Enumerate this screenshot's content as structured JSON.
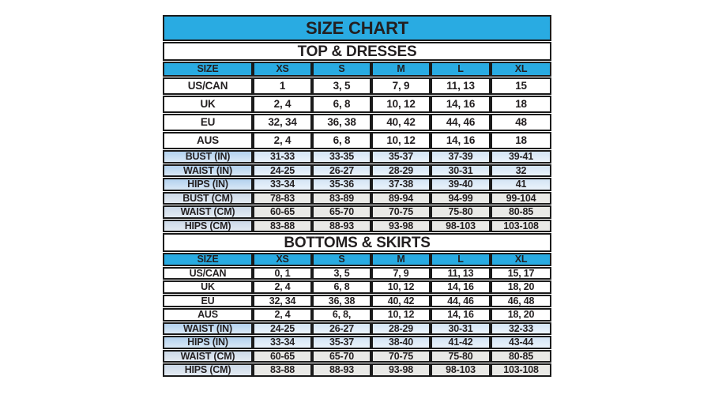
{
  "title": "SIZE CHART",
  "colors": {
    "accent-cyan": "#29ABE2",
    "border-dark": "#1b1b1b",
    "text-dark": "#231f20",
    "title-text": "#ffffff",
    "row-white": "#ffffff",
    "in-label-start": "#b3d1ee",
    "in-label-end": "#d9e8f6",
    "in-value-start": "#d3e4f4",
    "in-value-end": "#ebf3fb",
    "cm-label-start": "#ccd9e8",
    "cm-label-end": "#e3eaf2",
    "cm-value": "#e9e9e6"
  },
  "chart_data": [
    {
      "type": "table",
      "title": "TOP & DRESSES",
      "columns": [
        "SIZE",
        "XS",
        "S",
        "M",
        "L",
        "XL"
      ],
      "rows": [
        {
          "label": "US/CAN",
          "kind": "size",
          "values": [
            "1",
            "3, 5",
            "7, 9",
            "11, 13",
            "15"
          ]
        },
        {
          "label": "UK",
          "kind": "size",
          "values": [
            "2, 4",
            "6, 8",
            "10, 12",
            "14, 16",
            "18"
          ]
        },
        {
          "label": "EU",
          "kind": "size",
          "values": [
            "32, 34",
            "36, 38",
            "40, 42",
            "44, 46",
            "48"
          ]
        },
        {
          "label": "AUS",
          "kind": "size",
          "values": [
            "2, 4",
            "6, 8",
            "10, 12",
            "14, 16",
            "18"
          ]
        },
        {
          "label": "BUST (IN)",
          "kind": "in",
          "values": [
            "31-33",
            "33-35",
            "35-37",
            "37-39",
            "39-41"
          ]
        },
        {
          "label": "WAIST (IN)",
          "kind": "in",
          "values": [
            "24-25",
            "26-27",
            "28-29",
            "30-31",
            "32"
          ]
        },
        {
          "label": "HIPS (IN)",
          "kind": "in",
          "values": [
            "33-34",
            "35-36",
            "37-38",
            "39-40",
            "41"
          ]
        },
        {
          "label": "BUST (CM)",
          "kind": "cm",
          "values": [
            "78-83",
            "83-89",
            "89-94",
            "94-99",
            "99-104"
          ]
        },
        {
          "label": "WAIST (CM)",
          "kind": "cm",
          "values": [
            "60-65",
            "65-70",
            "70-75",
            "75-80",
            "80-85"
          ]
        },
        {
          "label": "HIPS (CM)",
          "kind": "cm",
          "values": [
            "83-88",
            "88-93",
            "93-98",
            "98-103",
            "103-108"
          ]
        }
      ]
    },
    {
      "type": "table",
      "title": "BOTTOMS & SKIRTS",
      "columns": [
        "SIZE",
        "XS",
        "S",
        "M",
        "L",
        "XL"
      ],
      "rows": [
        {
          "label": "US/CAN",
          "kind": "size",
          "values": [
            "0, 1",
            "3, 5",
            "7, 9",
            "11, 13",
            "15, 17"
          ]
        },
        {
          "label": "UK",
          "kind": "size",
          "values": [
            "2, 4",
            "6, 8",
            "10, 12",
            "14, 16",
            "18, 20"
          ]
        },
        {
          "label": "EU",
          "kind": "size",
          "values": [
            "32, 34",
            "36, 38",
            "40, 42",
            "44, 46",
            "46, 48"
          ]
        },
        {
          "label": "AUS",
          "kind": "size",
          "values": [
            "2, 4",
            "6, 8,",
            "10, 12",
            "14, 16",
            "18, 20"
          ]
        },
        {
          "label": "WAIST (IN)",
          "kind": "in",
          "values": [
            "24-25",
            "26-27",
            "28-29",
            "30-31",
            "32-33"
          ]
        },
        {
          "label": "HIPS (IN)",
          "kind": "in",
          "values": [
            "33-34",
            "35-37",
            "38-40",
            "41-42",
            "43-44"
          ]
        },
        {
          "label": "WAIST (CM)",
          "kind": "cm",
          "values": [
            "60-65",
            "65-70",
            "70-75",
            "75-80",
            "80-85"
          ]
        },
        {
          "label": "HIPS (CM)",
          "kind": "cm",
          "values": [
            "83-88",
            "88-93",
            "93-98",
            "98-103",
            "103-108"
          ]
        }
      ]
    }
  ]
}
